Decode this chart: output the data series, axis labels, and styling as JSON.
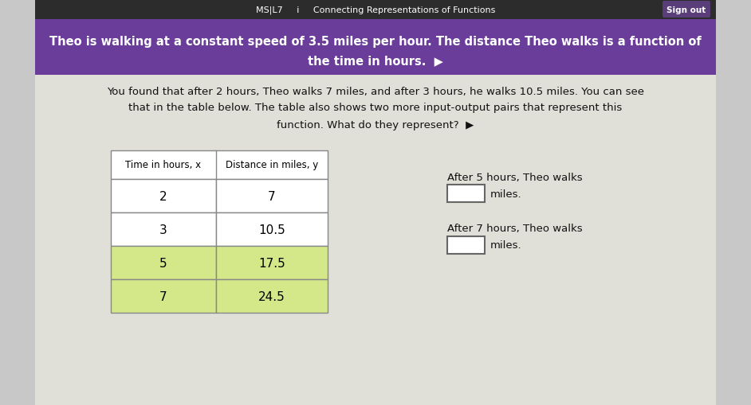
{
  "title_bar_color": "#6a3d9a",
  "title_text_line1": "Theo is walking at a constant speed of 3.5 miles per hour. The distance Theo walks is a function of",
  "title_text_line2": "the time in hours.  ▶",
  "bg_color": "#c8c8c8",
  "top_bar_color": "#2c2c2c",
  "top_bar_text": "MS|L7     i     Connecting Representations of Functions",
  "sign_out_text": "Sign out",
  "sign_out_bg": "#5a3e7a",
  "body_text_line1": "You found that after 2 hours, Theo walks 7 miles, and after 3 hours, he walks 10.5 miles. You can see",
  "body_text_line2": "that in the table below. The table also shows two more input-output pairs that represent this",
  "body_text_line3": "function. What do they represent?  ▶",
  "table_headers": [
    "Time in hours, x",
    "Distance in miles, y"
  ],
  "table_rows": [
    {
      "x": "2",
      "y": "7",
      "highlight": false
    },
    {
      "x": "3",
      "y": "10.5",
      "highlight": false
    },
    {
      "x": "5",
      "y": "17.5",
      "highlight": true
    },
    {
      "x": "7",
      "y": "24.5",
      "highlight": true
    }
  ],
  "highlight_color": "#d4e88a",
  "table_border_color": "#888888",
  "after5_text1": "After 5 hours, Theo walks",
  "after5_text2": "miles.",
  "after7_text1": "After 7 hours, Theo walks",
  "after7_text2": "miles.",
  "body_bg": "#e0e0d8",
  "text_color": "#111111"
}
